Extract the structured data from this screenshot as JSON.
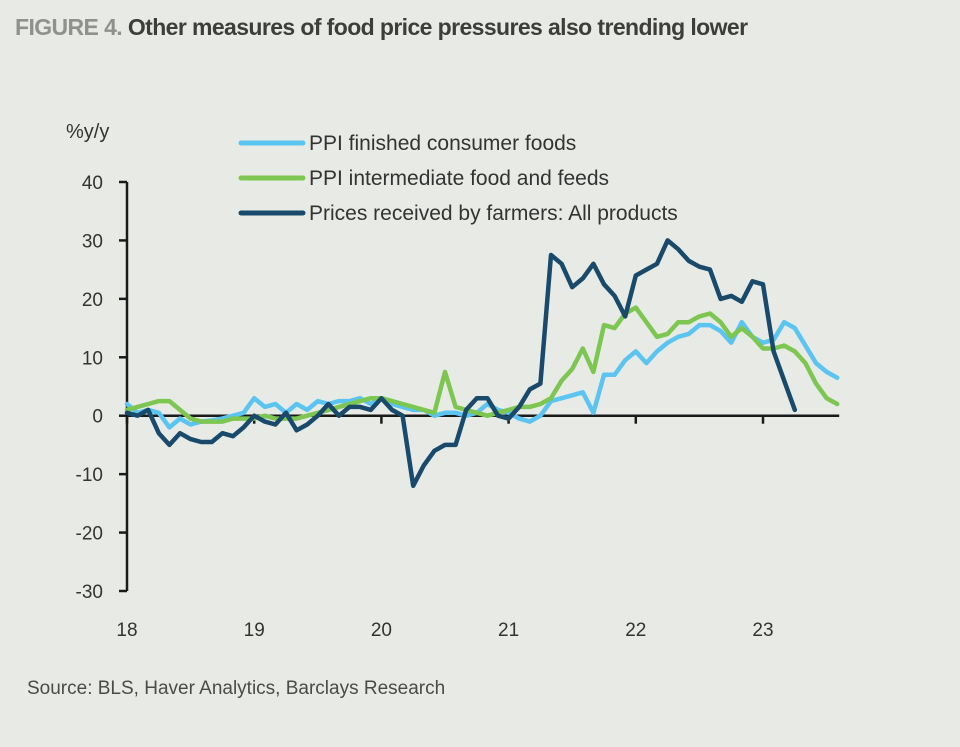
{
  "title": {
    "figure_label": "FIGURE 4.",
    "text": "Other measures of food price pressures also trending lower"
  },
  "source": "Source: BLS, Haver Analytics, Barclays Research",
  "chart_data": {
    "type": "line",
    "title": "Other measures of food price pressures also trending lower",
    "ylabel": "%y/y",
    "xlabel": "",
    "ylim": [
      -30,
      40
    ],
    "yticks": [
      40,
      30,
      20,
      10,
      0,
      -10,
      -20,
      -30
    ],
    "xticks": [
      "18",
      "19",
      "20",
      "21",
      "22",
      "23"
    ],
    "x_start": "2018-01",
    "x_frequency": "monthly",
    "legend_position": "top-center",
    "grid": false,
    "series": [
      {
        "name": "PPI finished consumer foods",
        "color": "#5bc4f1",
        "values": [
          2.0,
          0.5,
          1.0,
          0.5,
          -2.0,
          -0.5,
          -1.5,
          -1.0,
          -0.8,
          -0.5,
          0.0,
          0.5,
          3.0,
          1.5,
          2.0,
          0.5,
          2.0,
          1.0,
          2.5,
          2.0,
          2.5,
          2.5,
          3.0,
          2.0,
          3.0,
          2.0,
          1.5,
          1.0,
          1.0,
          0.0,
          0.5,
          0.5,
          0.0,
          0.5,
          2.0,
          1.0,
          0.5,
          -0.5,
          -1.0,
          0.0,
          2.5,
          3.0,
          3.5,
          4.0,
          0.5,
          7.0,
          7.0,
          9.5,
          11.0,
          9.0,
          11.0,
          12.5,
          13.5,
          14.0,
          15.5,
          15.5,
          14.5,
          12.5,
          16.0,
          13.5,
          12.5,
          13.0,
          16.0,
          15.0,
          12.0,
          9.0,
          7.5,
          6.5
        ]
      },
      {
        "name": "PPI intermediate food and feeds",
        "color": "#7cc651",
        "values": [
          1.0,
          1.5,
          2.0,
          2.5,
          2.5,
          1.0,
          -0.5,
          -1.0,
          -1.0,
          -1.0,
          -0.5,
          -0.5,
          -0.5,
          0.0,
          -0.5,
          -0.5,
          -0.5,
          0.0,
          0.5,
          1.0,
          1.5,
          2.0,
          2.5,
          3.0,
          3.0,
          2.5,
          2.0,
          1.5,
          1.0,
          0.5,
          7.5,
          1.5,
          1.0,
          0.5,
          0.0,
          0.5,
          1.0,
          1.5,
          1.5,
          2.0,
          3.0,
          6.0,
          8.0,
          11.5,
          7.5,
          15.5,
          15.0,
          17.5,
          18.5,
          16.0,
          13.5,
          14.0,
          16.0,
          16.0,
          17.0,
          17.5,
          16.0,
          13.5,
          15.0,
          13.5,
          11.5,
          11.5,
          12.0,
          11.0,
          9.0,
          5.5,
          3.0,
          2.0
        ]
      },
      {
        "name": "Prices received by farmers: All products",
        "color": "#1a4a6b",
        "values": [
          0.5,
          0.0,
          1.0,
          -3.0,
          -5.0,
          -3.0,
          -4.0,
          -4.5,
          -4.5,
          -3.0,
          -3.5,
          -2.0,
          0.0,
          -1.0,
          -1.5,
          0.5,
          -2.5,
          -1.5,
          0.0,
          2.0,
          0.0,
          1.5,
          1.5,
          1.0,
          3.0,
          1.0,
          0.0,
          -12.0,
          -8.5,
          -6.0,
          -5.0,
          -5.0,
          1.0,
          3.0,
          3.0,
          0.0,
          -0.5,
          1.5,
          4.5,
          5.5,
          27.5,
          26.0,
          22.0,
          23.5,
          26.0,
          22.5,
          20.5,
          17.0,
          24.0,
          25.0,
          26.0,
          30.0,
          28.5,
          26.5,
          25.5,
          25.0,
          20.0,
          20.5,
          19.5,
          23.0,
          22.5,
          11.0,
          6.0,
          1.0
        ]
      }
    ]
  }
}
